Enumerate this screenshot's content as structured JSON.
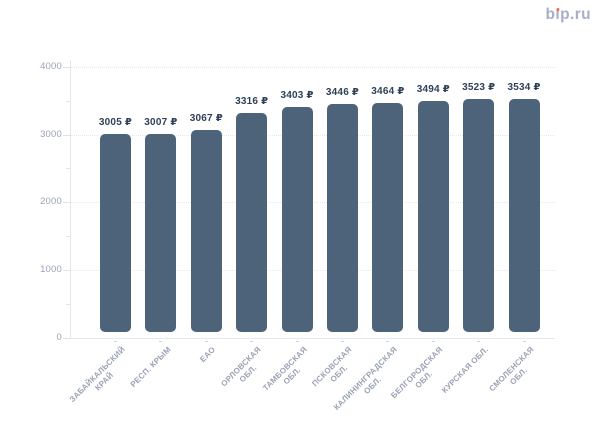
{
  "logo": {
    "text": "bip.ru",
    "part_b": "b",
    "part_i": "ı",
    "part_rest": "p.ru",
    "text_color": "#a9aec7",
    "dot_color": "#ec6c46"
  },
  "chart_data": {
    "type": "bar",
    "title": "",
    "xlabel": "",
    "ylabel": "",
    "categories": [
      "ЗАБАЙКАЛЬСКИЙ КРАЙ",
      "РЕСП. КРЫМ",
      "ЕАО",
      "ОРЛОВСКАЯ ОБЛ.",
      "ТАМБОВСКАЯ ОБЛ.",
      "ПСКОВСКАЯ ОБЛ.",
      "КАЛИНИНГРАДСКАЯ ОБЛ.",
      "БЕЛГОРОДСКАЯ ОБЛ.",
      "КУРСКАЯ ОБЛ.",
      "СМОЛЕНСКАЯ ОБЛ."
    ],
    "category_lines": [
      [
        "ЗАБАЙКАЛЬСКИЙ",
        "КРАЙ"
      ],
      [
        "РЕСП. КРЫМ"
      ],
      [
        "ЕАО"
      ],
      [
        "ОРЛОВСКАЯ",
        "ОБЛ."
      ],
      [
        "ТАМБОВСКАЯ",
        "ОБЛ."
      ],
      [
        "ПСКОВСКАЯ",
        "ОБЛ."
      ],
      [
        "КАЛИНИНГРАДСКАЯ",
        "ОБЛ."
      ],
      [
        "БЕЛГОРОДСКАЯ",
        "ОБЛ."
      ],
      [
        "КУРСКАЯ ОБЛ."
      ],
      [
        "СМОЛЕНСКАЯ",
        "ОБЛ."
      ]
    ],
    "values": [
      3005,
      3007,
      3067,
      3316,
      3403,
      3446,
      3464,
      3494,
      3523,
      3534
    ],
    "value_labels": [
      "3005 ₽",
      "3007 ₽",
      "3067 ₽",
      "3316 ₽",
      "3403 ₽",
      "3446 ₽",
      "3464 ₽",
      "3494 ₽",
      "3523 ₽",
      "3534 ₽"
    ],
    "unit": "₽",
    "ylim": [
      0,
      4000
    ],
    "yticks": [
      0,
      1000,
      2000,
      3000,
      4000
    ],
    "ytick_labels": [
      "0",
      "1000",
      "2000",
      "3000",
      "4000"
    ],
    "minor_yticks": [
      500,
      1500,
      2500,
      3500
    ],
    "grid": "horizontal dotted lines at major y ticks",
    "legend": "none",
    "bar_color": "#4d6379",
    "value_label_color": "#2e4156",
    "axis_label_color": "#9aa3b5",
    "axis_line_color": "#e3e6ec",
    "grid_color": "#e5e8ee"
  }
}
